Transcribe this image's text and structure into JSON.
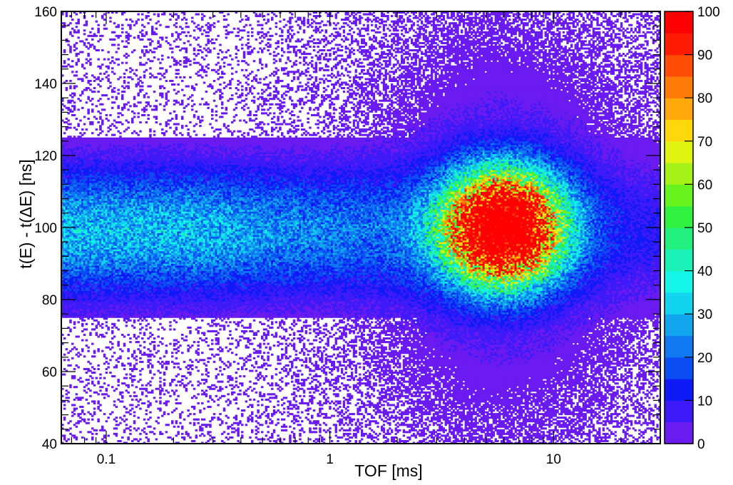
{
  "chart_data": {
    "type": "heatmap",
    "title": "",
    "xlabel": "TOF  [ms]",
    "ylabel": "t(E) - t(ΔE)  [ns]",
    "x_scale": "log",
    "xlim": [
      0.063,
      30
    ],
    "ylim": [
      40,
      160
    ],
    "x_tick_labels": [
      {
        "value": 0.1,
        "label": "0.1"
      },
      {
        "value": 1,
        "label": "1"
      },
      {
        "value": 10,
        "label": "10"
      }
    ],
    "y_tick_labels": [
      {
        "value": 40,
        "label": "40"
      },
      {
        "value": 60,
        "label": "60"
      },
      {
        "value": 80,
        "label": "80"
      },
      {
        "value": 100,
        "label": "100"
      },
      {
        "value": 120,
        "label": "120"
      },
      {
        "value": 140,
        "label": "140"
      },
      {
        "value": 160,
        "label": "160"
      }
    ],
    "grid": false,
    "colorbar": {
      "range": [
        0,
        100
      ],
      "tick_labels": [
        "0",
        "10",
        "20",
        "30",
        "40",
        "50",
        "60",
        "70",
        "80",
        "90",
        "100"
      ],
      "colors": [
        "#6a1bf0",
        "#3f1af8",
        "#101af8",
        "#0a4df2",
        "#1078f0",
        "#12a6ee",
        "#12d4ee",
        "#14f6e8",
        "#1cf2b8",
        "#22f07e",
        "#30f040",
        "#68f21e",
        "#a6f218",
        "#e0f512",
        "#ffd80c",
        "#ffaa0a",
        "#ff7b08",
        "#ff4c06",
        "#ff1c04",
        "#ff0000"
      ]
    },
    "features": [
      {
        "name": "main peak",
        "center_x": 6,
        "center_y": 100,
        "max_value": 100
      },
      {
        "name": "low-TOF band",
        "x_range": [
          0.063,
          3
        ],
        "y_range": [
          75,
          125
        ],
        "center_y": 99
      }
    ]
  }
}
